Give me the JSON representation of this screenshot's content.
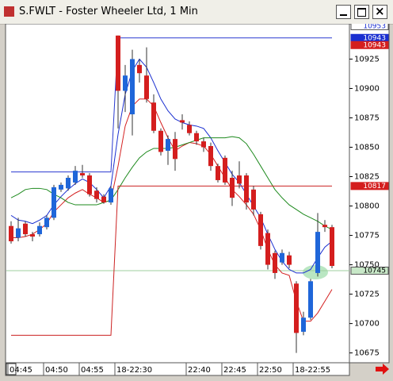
{
  "window": {
    "title": "S.FWLT - Foster Wheeler Ltd, 1 Min"
  },
  "chart_data": {
    "type": "candlestick",
    "categories": [
      "04:45",
      null,
      null,
      null,
      null,
      "04:50",
      null,
      null,
      null,
      null,
      "04:55",
      null,
      null,
      null,
      null,
      "18-22:30",
      null,
      null,
      null,
      null,
      null,
      null,
      null,
      null,
      null,
      "22:40",
      null,
      null,
      null,
      null,
      "22:45",
      null,
      null,
      null,
      null,
      "22:50",
      null,
      null,
      null,
      null,
      "18-22:55",
      null,
      null,
      null,
      null,
      null
    ],
    "open": [
      10783,
      10773,
      10785,
      10776,
      10776,
      10782,
      10790,
      10814,
      10815,
      10820,
      10828,
      10826,
      10813,
      10808,
      10803,
      10945,
      10898,
      10878,
      10920,
      10911,
      10888,
      10864,
      10847,
      10857,
      10873,
      10869,
      10862,
      10855,
      10851,
      10834,
      10841,
      10824,
      10826,
      10826,
      10814,
      10793,
      10777,
      10760,
      10752,
      10758,
      10734,
      10693,
      10705,
      10743,
      10784,
      10782
    ],
    "high": [
      10787,
      10790,
      10787,
      10778,
      10786,
      10792,
      10818,
      10820,
      10826,
      10834,
      10835,
      10828,
      10816,
      10810,
      10817,
      10945,
      10920,
      10933,
      10925,
      10935,
      10895,
      10866,
      10860,
      10863,
      10878,
      10872,
      10864,
      10858,
      10854,
      10836,
      10843,
      10830,
      10838,
      10828,
      10817,
      10795,
      10780,
      10762,
      10763,
      10761,
      10736,
      10710,
      10738,
      10794,
      10788,
      10784
    ],
    "low": [
      10768,
      10770,
      10774,
      10770,
      10774,
      10780,
      10788,
      10812,
      10813,
      10818,
      10824,
      10808,
      10803,
      10802,
      10801,
      10866,
      10880,
      10860,
      10905,
      10888,
      10862,
      10843,
      10835,
      10830,
      10865,
      10860,
      10852,
      10846,
      10830,
      10820,
      10818,
      10800,
      10815,
      10797,
      10792,
      10763,
      10746,
      10738,
      10750,
      10747,
      10675,
      10690,
      10703,
      10740,
      10778,
      10747
    ],
    "close": [
      10770,
      10781,
      10776,
      10774,
      10783,
      10790,
      10816,
      10818,
      10824,
      10830,
      10826,
      10810,
      10806,
      10803,
      10815,
      10898,
      10911,
      10925,
      10913,
      10891,
      10864,
      10846,
      10857,
      10840,
      10871,
      10862,
      10855,
      10850,
      10834,
      10822,
      10820,
      10807,
      10819,
      10803,
      10797,
      10766,
      10750,
      10743,
      10760,
      10750,
      10692,
      10705,
      10736,
      10778,
      10782,
      10749
    ],
    "up_color": "#1f66d9",
    "down_color": "#d41e1e",
    "overlays": [
      {
        "color": "#1a2fd0",
        "values": [
          10792,
          10788,
          10787,
          10785,
          10788,
          10792,
          10801,
          10808,
          10814,
          10819,
          10823,
          10820,
          10814,
          10807,
          10817,
          10861,
          10895,
          10915,
          10925,
          10918,
          10905,
          10891,
          10881,
          10874,
          10871,
          10869,
          10868,
          10866,
          10858,
          10847,
          10837,
          10827,
          10820,
          10810,
          10800,
          10790,
          10776,
          10763,
          10753,
          10746,
          10743,
          10743,
          10746,
          10756,
          10765,
          10770
        ]
      },
      {
        "color": "#d42020",
        "values": [
          10773,
          10773,
          10774,
          10776,
          10780,
          10785,
          10795,
          10801,
          10807,
          10811,
          10814,
          10810,
          10807,
          10803,
          10805,
          10834,
          10868,
          10885,
          10891,
          10891,
          10885,
          10871,
          10858,
          10847,
          10851,
          10854,
          10853,
          10851,
          10844,
          10834,
          10824,
          10814,
          10808,
          10801,
          10793,
          10780,
          10763,
          10750,
          10743,
          10741,
          10719,
          10702,
          10702,
          10709,
          10719,
          10729
        ]
      },
      {
        "color": "#1e8a1e",
        "values": [
          10807,
          10810,
          10814,
          10815,
          10815,
          10814,
          10810,
          10807,
          10803,
          10801,
          10801,
          10801,
          10801,
          10803,
          10805,
          10814,
          10824,
          10833,
          10841,
          10846,
          10849,
          10849,
          10849,
          10850,
          10852,
          10854,
          10856,
          10858,
          10858,
          10858,
          10858,
          10859,
          10858,
          10853,
          10844,
          10834,
          10824,
          10814,
          10807,
          10801,
          10797,
          10793,
          10790,
          10787,
          10783,
          10780
        ]
      },
      {
        "color": "#2a3ad0",
        "values": [
          10829,
          10829,
          10829,
          10829,
          10829,
          10829,
          10829,
          10829,
          10829,
          10829,
          10829,
          10829,
          10829,
          10829,
          10829,
          10943,
          10943,
          10943,
          10943,
          10943,
          10943,
          10943,
          10943,
          10943,
          10943,
          10943,
          10943,
          10943,
          10943,
          10943,
          10943,
          10943,
          10943,
          10943,
          10943,
          10943,
          10943,
          10943,
          10943,
          10943,
          10943,
          10943,
          10943,
          10943,
          10943,
          10943
        ]
      },
      {
        "color": "#cc2222",
        "values": [
          10690,
          10690,
          10690,
          10690,
          10690,
          10690,
          10690,
          10690,
          10690,
          10690,
          10690,
          10690,
          10690,
          10690,
          10690,
          10817,
          10817,
          10817,
          10817,
          10817,
          10817,
          10817,
          10817,
          10817,
          10817,
          10817,
          10817,
          10817,
          10817,
          10817,
          10817,
          10817,
          10817,
          10817,
          10817,
          10817,
          10817,
          10817,
          10817,
          10817,
          10817,
          10817,
          10817,
          10817,
          10817,
          10817
        ]
      }
    ],
    "price_labels": [
      {
        "value": 10953,
        "color": "#ffffff",
        "text_color": "#1a2fd0"
      },
      {
        "value": 10943,
        "color": "#1a2fd0",
        "text_color": "#ffffff"
      },
      {
        "value": 10943,
        "color": "#d41e1e",
        "text_color": "#ffffff"
      },
      {
        "value": 10817,
        "color": "#d41e1e",
        "text_color": "#ffffff"
      },
      {
        "value": 10745,
        "color": "#c8e8c8",
        "text_color": "#000000",
        "line": true
      }
    ],
    "ylim": [
      10668,
      10955
    ],
    "yticks": [
      10675,
      10700,
      10725,
      10750,
      10775,
      10800,
      10825,
      10850,
      10875,
      10900,
      10925
    ]
  }
}
